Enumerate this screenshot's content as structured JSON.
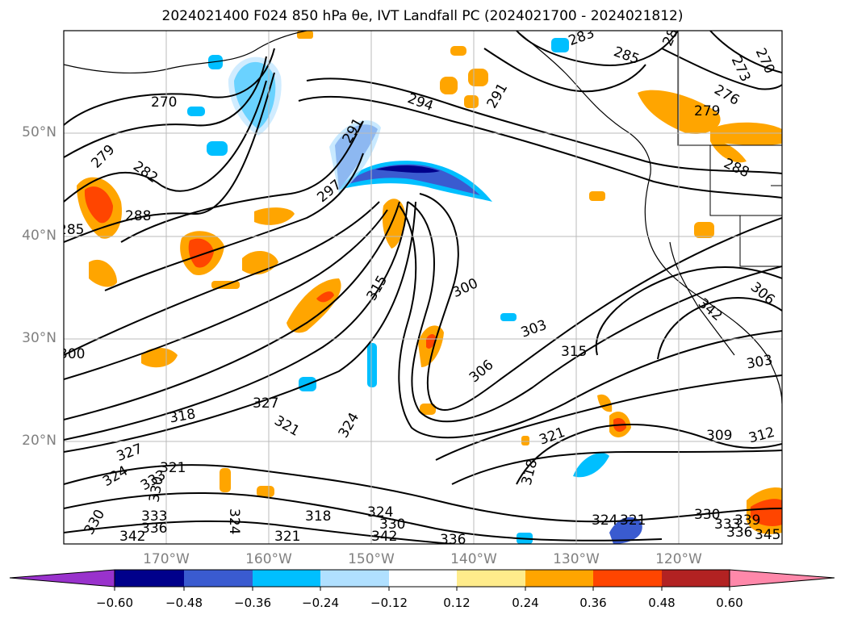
{
  "title": "2024021400 F024 850 hPa θe, IVT Landfall PC (2024021700 - 2024021812)",
  "lat_labels": [
    "50°N",
    "40°N",
    "30°N",
    "20°N"
  ],
  "lon_labels": [
    "170°W",
    "160°W",
    "150°W",
    "140°W",
    "130°W",
    "120°W"
  ],
  "colorbar": {
    "colors": [
      "#9932cc",
      "#00008b",
      "#3a5bd0",
      "#00bfff",
      "#b0e0ff",
      "#ffffff",
      "#ffec8b",
      "#ffa500",
      "#ff4500",
      "#b22222",
      "#ff88aa"
    ],
    "ticks": [
      "−0.60",
      "−0.48",
      "−0.36",
      "−0.24",
      "−0.12",
      "0.12",
      "0.24",
      "0.36",
      "0.48",
      "0.60"
    ]
  },
  "contour_labels": [
    "270",
    "276",
    "279",
    "282",
    "285",
    "288",
    "291",
    "294",
    "297",
    "300",
    "303",
    "306",
    "309",
    "312",
    "315",
    "318",
    "321",
    "324",
    "327",
    "330",
    "333",
    "336",
    "339",
    "342",
    "345",
    "283",
    "273"
  ]
}
